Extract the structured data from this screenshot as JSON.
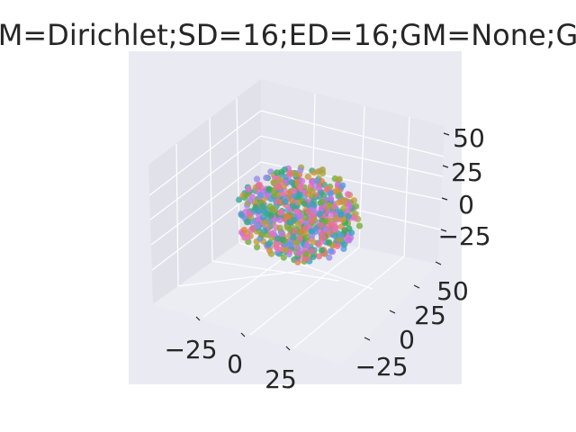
{
  "chart_data": {
    "type": "scatter",
    "title": "M=Dirichlet;SD=16;ED=16;GM=None;G",
    "projection": "3d",
    "grid": true,
    "legend": "none",
    "xlabel": "",
    "ylabel": "",
    "zlabel": "",
    "x_ticks": [
      "−25",
      "0",
      "25"
    ],
    "y_ticks": [
      "−25",
      "0",
      "25",
      "50"
    ],
    "z_ticks": [
      "−25",
      "0",
      "25",
      "50"
    ],
    "xlim": [
      -50,
      50
    ],
    "ylim": [
      -50,
      65
    ],
    "zlim": [
      -45,
      65
    ],
    "n_points": 700,
    "distribution": "roughly spherical cloud centered near origin, radius about 45",
    "palette": [
      "#e8718d",
      "#e0823c",
      "#c99a3b",
      "#a6a63a",
      "#75ad3b",
      "#3aaa64",
      "#36a89a",
      "#38a3bd",
      "#5b9be0",
      "#9b8be8",
      "#d16ee0",
      "#ec6fc1"
    ]
  },
  "colors": {
    "pane_bg": "#eaeaf2",
    "pane_left": "#e1e1ea",
    "pane_right": "#e6e6ee",
    "pane_floor": "#ececf3",
    "grid": "#ffffff",
    "text": "#262626"
  }
}
